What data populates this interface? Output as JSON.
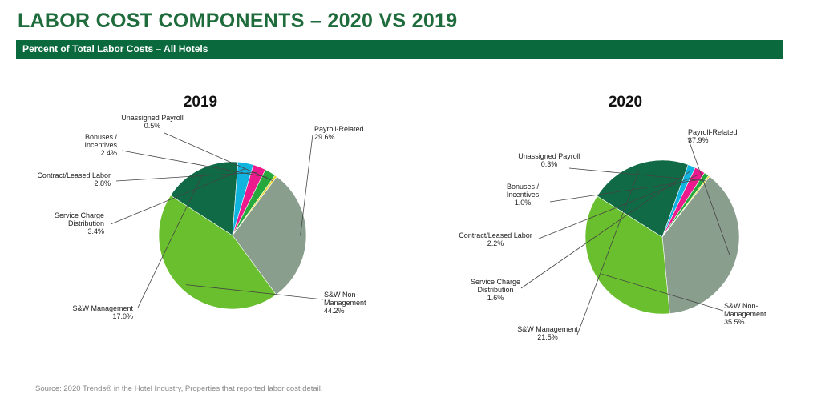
{
  "header": {
    "title": "LABOR COST COMPONENTS – 2020 VS 2019",
    "subtitle": "Percent of Total Labor Costs – All Hotels"
  },
  "footer": {
    "source": "Source: 2020 Trends® in the Hotel Industry, Properties that reported labor cost detail."
  },
  "colors": {
    "brand_green": "#1e6b3c",
    "bar_green": "#0b6a3d",
    "Payroll-Related": "#8a9e8e",
    "S&W Non-Management": "#6abf2e",
    "S&W Management": "#0f6a45",
    "Service Charge Distribution": "#10b4df",
    "Contract/Leased Labor": "#ec1a8c",
    "Bonuses / Incentives": "#27a83c",
    "Unassigned Payroll": "#e7d634"
  },
  "chart_data": [
    {
      "type": "pie",
      "title": "2019",
      "series": [
        {
          "name": "Payroll-Related",
          "label_lines": [
            "Payroll-Related"
          ],
          "value": 29.6,
          "value_label": "29.6%"
        },
        {
          "name": "S&W Non-Management",
          "label_lines": [
            "S&W Non-",
            "Management"
          ],
          "value": 44.2,
          "value_label": "44.2%"
        },
        {
          "name": "S&W Management",
          "label_lines": [
            "S&W Management"
          ],
          "value": 17.0,
          "value_label": "17.0%"
        },
        {
          "name": "Service Charge Distribution",
          "label_lines": [
            "Service Charge",
            "Distribution"
          ],
          "value": 3.4,
          "value_label": "3.4%"
        },
        {
          "name": "Contract/Leased Labor",
          "label_lines": [
            "Contract/Leased Labor"
          ],
          "value": 2.8,
          "value_label": "2.8%"
        },
        {
          "name": "Bonuses / Incentives",
          "label_lines": [
            "Bonuses /",
            "Incentives"
          ],
          "value": 2.4,
          "value_label": "2.4%"
        },
        {
          "name": "Unassigned Payroll",
          "label_lines": [
            "Unassigned Payroll"
          ],
          "value": 0.5,
          "value_label": "0.5%"
        }
      ]
    },
    {
      "type": "pie",
      "title": "2020",
      "series": [
        {
          "name": "Payroll-Related",
          "label_lines": [
            "Payroll-Related"
          ],
          "value": 37.9,
          "value_label": "37.9%"
        },
        {
          "name": "S&W Non-Management",
          "label_lines": [
            "S&W Non-",
            "Management"
          ],
          "value": 35.5,
          "value_label": "35.5%"
        },
        {
          "name": "S&W Management",
          "label_lines": [
            "S&W Management"
          ],
          "value": 21.5,
          "value_label": "21.5%"
        },
        {
          "name": "Service Charge Distribution",
          "label_lines": [
            "Service Charge",
            "Distribution"
          ],
          "value": 1.6,
          "value_label": "1.6%"
        },
        {
          "name": "Contract/Leased Labor",
          "label_lines": [
            "Contract/Leased Labor"
          ],
          "value": 2.2,
          "value_label": "2.2%"
        },
        {
          "name": "Bonuses / Incentives",
          "label_lines": [
            "Bonuses /",
            "Incentives"
          ],
          "value": 1.0,
          "value_label": "1.0%"
        },
        {
          "name": "Unassigned Payroll",
          "label_lines": [
            "Unassigned Payroll"
          ],
          "value": 0.3,
          "value_label": "0.3%"
        }
      ]
    }
  ]
}
